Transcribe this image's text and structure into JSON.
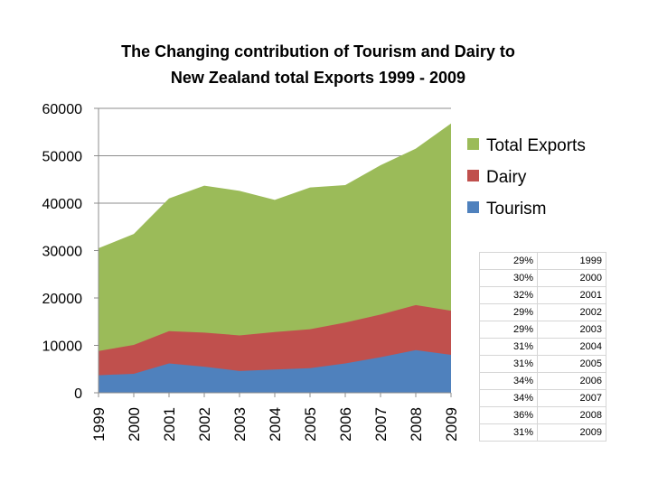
{
  "chart_data": {
    "type": "area",
    "title": [
      "The Changing contribution of Tourism and Dairy to",
      "New Zealand total Exports 1999 - 2009"
    ],
    "categories": [
      "1999",
      "2000",
      "2001",
      "2002",
      "2003",
      "2004",
      "2005",
      "2006",
      "2007",
      "2008",
      "2009"
    ],
    "ylim": [
      0,
      60000
    ],
    "yticks": [
      0,
      10000,
      20000,
      30000,
      40000,
      50000,
      60000
    ],
    "grid": true,
    "legend_position": "right",
    "series": [
      {
        "name": "Tourism",
        "color": "#4f81bd",
        "values": [
          3700,
          4000,
          6200,
          5500,
          4600,
          4900,
          5200,
          6200,
          7500,
          9000,
          8000
        ]
      },
      {
        "name": "Dairy",
        "color": "#c0504d",
        "values": [
          8800,
          10100,
          13000,
          12700,
          12100,
          12800,
          13400,
          14800,
          16500,
          18500,
          17300
        ]
      },
      {
        "name": "Total Exports",
        "color": "#9bbb59",
        "values": [
          30500,
          33500,
          41000,
          43700,
          42600,
          40700,
          43300,
          43800,
          48000,
          51500,
          56800
        ]
      }
    ],
    "legend_order": [
      "Total Exports",
      "Dairy",
      "Tourism"
    ]
  },
  "table": [
    {
      "pct": "29%",
      "year": "1999"
    },
    {
      "pct": "30%",
      "year": "2000"
    },
    {
      "pct": "32%",
      "year": "2001"
    },
    {
      "pct": "29%",
      "year": "2002"
    },
    {
      "pct": "29%",
      "year": "2003"
    },
    {
      "pct": "31%",
      "year": "2004"
    },
    {
      "pct": "31%",
      "year": "2005"
    },
    {
      "pct": "34%",
      "year": "2006"
    },
    {
      "pct": "34%",
      "year": "2007"
    },
    {
      "pct": "36%",
      "year": "2008"
    },
    {
      "pct": "31%",
      "year": "2009"
    }
  ]
}
